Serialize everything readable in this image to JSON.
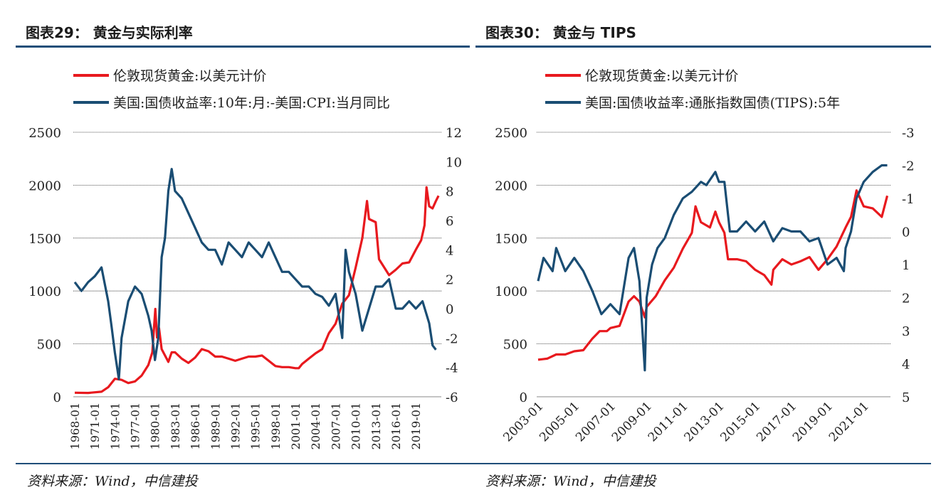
{
  "panels": [
    {
      "title": "图表29：  黄金与实际利率",
      "source": "资料来源：Wind，中信建投"
    },
    {
      "title": "图表30：  黄金与 TIPS",
      "source": "资料来源：Wind，中信建投"
    }
  ],
  "colors": {
    "gold": "#e8191e",
    "rate": "#1a4d73",
    "rule": "#1f4e79"
  },
  "chart_data": [
    {
      "type": "line",
      "title": "",
      "legend": "top-left",
      "grid": true,
      "x_ticks": [
        "1968-01",
        "1971-01",
        "1974-01",
        "1977-01",
        "1980-01",
        "1983-01",
        "1986-01",
        "1989-01",
        "1992-01",
        "1995-01",
        "1998-01",
        "2001-01",
        "2004-01",
        "2007-01",
        "2010-01",
        "2013-01",
        "2016-01",
        "2019-01"
      ],
      "xlim": [
        1968.0,
        2022.6
      ],
      "y_left": {
        "ticks": [
          "0",
          "500",
          "1000",
          "1500",
          "2000",
          "2500"
        ],
        "lim": [
          0,
          2500
        ]
      },
      "y_right": {
        "ticks": [
          "-6",
          "-4",
          "-2",
          "0",
          "2",
          "4",
          "6",
          "8",
          "10",
          "12"
        ],
        "lim": [
          -6,
          12
        ]
      },
      "series": [
        {
          "name": "伦敦现货黄金:以美元计价",
          "axis": "left",
          "x": [
            1968,
            1970,
            1972,
            1973,
            1974,
            1975,
            1976,
            1977,
            1978,
            1979,
            1979.6,
            1980.05,
            1980.3,
            1980.6,
            1981,
            1982,
            1982.5,
            1983,
            1984,
            1985,
            1986,
            1987,
            1988,
            1989,
            1990,
            1991,
            1992,
            1993,
            1994,
            1995,
            1996,
            1997,
            1998,
            1999,
            2000,
            2001,
            2001.5,
            2002,
            2003,
            2004,
            2005,
            2006,
            2007,
            2008,
            2009,
            2010,
            2011,
            2011.7,
            2012,
            2013,
            2013.5,
            2014,
            2015,
            2016,
            2017,
            2018,
            2019,
            2019.8,
            2020.3,
            2020.6,
            2021,
            2021.5,
            2022,
            2022.4
          ],
          "y": [
            38,
            36,
            48,
            90,
            170,
            160,
            130,
            145,
            200,
            300,
            420,
            830,
            560,
            650,
            450,
            330,
            420,
            420,
            360,
            320,
            370,
            450,
            430,
            380,
            380,
            360,
            340,
            360,
            380,
            380,
            390,
            340,
            290,
            280,
            280,
            270,
            270,
            310,
            360,
            410,
            450,
            600,
            690,
            880,
            960,
            1220,
            1500,
            1850,
            1680,
            1650,
            1300,
            1250,
            1150,
            1200,
            1260,
            1270,
            1390,
            1480,
            1620,
            1980,
            1800,
            1780,
            1850,
            1900
          ]
        },
        {
          "name": "美国:国债收益率:10年:月:-美国:CPI:当月同比",
          "axis": "right",
          "x": [
            1968,
            1969,
            1970,
            1971,
            1972,
            1973,
            1973.5,
            1974,
            1974.6,
            1975,
            1976,
            1977,
            1978,
            1979,
            1979.5,
            1980,
            1980.5,
            1981,
            1981.5,
            1982,
            1982.5,
            1983,
            1984,
            1985,
            1986,
            1987,
            1988,
            1989,
            1990,
            1991,
            1992,
            1993,
            1994,
            1995,
            1996,
            1997,
            1998,
            1999,
            2000,
            2001,
            2002,
            2003,
            2004,
            2005,
            2006,
            2007,
            2008,
            2008.5,
            2009,
            2010,
            2011,
            2012,
            2013,
            2014,
            2015,
            2016,
            2017,
            2018,
            2019,
            2020,
            2021,
            2021.5,
            2022
          ],
          "y": [
            1.8,
            1.2,
            1.8,
            2.2,
            2.8,
            0.5,
            -1.2,
            -3.0,
            -4.8,
            -2.0,
            0.5,
            1.5,
            1.0,
            -0.5,
            -1.5,
            -3.5,
            -2.0,
            3.5,
            4.8,
            8.0,
            9.5,
            8.0,
            7.5,
            6.5,
            5.5,
            4.5,
            4.0,
            4.0,
            3.0,
            4.5,
            4.0,
            3.5,
            4.5,
            4.0,
            3.5,
            4.5,
            3.5,
            2.5,
            2.5,
            2.0,
            1.5,
            1.5,
            1.0,
            0.8,
            0.2,
            1.0,
            -2.0,
            4.0,
            2.5,
            1.0,
            -1.5,
            0.0,
            1.5,
            1.5,
            2.0,
            0.0,
            0.0,
            0.5,
            0.0,
            0.5,
            -1.0,
            -2.5,
            -2.8
          ]
        }
      ]
    },
    {
      "type": "line",
      "title": "",
      "legend": "top-left",
      "grid": true,
      "x_ticks": [
        "2003-01",
        "2005-01",
        "2007-01",
        "2009-01",
        "2011-01",
        "2013-01",
        "2015-01",
        "2017-01",
        "2019-01",
        "2021-01"
      ],
      "xlim": [
        2003.0,
        2022.4
      ],
      "y_left": {
        "ticks": [
          "0",
          "500",
          "1000",
          "1500",
          "2000",
          "2500"
        ],
        "lim": [
          0,
          2500
        ]
      },
      "y_right": {
        "ticks": [
          "5",
          "4",
          "3",
          "2",
          "1",
          "0",
          "-1",
          "-2",
          "-3"
        ],
        "lim": [
          5,
          -3
        ],
        "inverted": true
      },
      "series": [
        {
          "name": "伦敦现货黄金:以美元计价",
          "axis": "left",
          "x": [
            2003,
            2003.5,
            2004,
            2004.5,
            2005,
            2005.5,
            2006,
            2006.4,
            2006.8,
            2007,
            2007.5,
            2008,
            2008.3,
            2008.6,
            2008.9,
            2009,
            2009.5,
            2010,
            2010.5,
            2011,
            2011.5,
            2011.7,
            2012,
            2012.5,
            2012.8,
            2013,
            2013.3,
            2013.5,
            2014,
            2014.5,
            2015,
            2015.5,
            2015.9,
            2016,
            2016.5,
            2017,
            2017.5,
            2018,
            2018.5,
            2019,
            2019.5,
            2020,
            2020.3,
            2020.6,
            2021,
            2021.5,
            2022,
            2022.3
          ],
          "y": [
            350,
            360,
            400,
            400,
            430,
            440,
            550,
            620,
            620,
            650,
            670,
            900,
            950,
            900,
            750,
            850,
            950,
            1100,
            1220,
            1400,
            1550,
            1800,
            1650,
            1600,
            1750,
            1650,
            1550,
            1300,
            1300,
            1280,
            1200,
            1150,
            1060,
            1200,
            1300,
            1250,
            1280,
            1320,
            1200,
            1300,
            1420,
            1600,
            1700,
            1950,
            1800,
            1780,
            1700,
            1900
          ]
        },
        {
          "name": "美国:国债收益率:通胀指数国债(TIPS):5年",
          "axis": "right",
          "x": [
            2003,
            2003.3,
            2003.8,
            2004,
            2004.5,
            2005,
            2005.5,
            2006,
            2006.5,
            2007,
            2007.5,
            2008,
            2008.3,
            2008.6,
            2008.9,
            2009,
            2009.3,
            2009.6,
            2010,
            2010.5,
            2011,
            2011.5,
            2012,
            2012.3,
            2012.8,
            2013,
            2013.3,
            2013.6,
            2014,
            2014.5,
            2015,
            2015.5,
            2016,
            2016.5,
            2017,
            2017.5,
            2018,
            2018.5,
            2019,
            2019.5,
            2019.9,
            2020,
            2020.3,
            2020.6,
            2021,
            2021.5,
            2022,
            2022.3
          ],
          "y": [
            1.5,
            0.8,
            1.2,
            0.5,
            1.2,
            0.8,
            1.2,
            1.8,
            2.5,
            2.2,
            2.5,
            0.8,
            0.5,
            1.5,
            4.2,
            2.0,
            1.0,
            0.5,
            0.2,
            -0.5,
            -1.0,
            -1.2,
            -1.5,
            -1.4,
            -1.8,
            -1.5,
            -1.5,
            0.0,
            0.0,
            -0.3,
            0.0,
            -0.3,
            0.3,
            -0.1,
            0.0,
            0.0,
            0.3,
            0.2,
            1.0,
            0.8,
            1.2,
            0.5,
            0.0,
            -1.0,
            -1.5,
            -1.8,
            -2.0,
            -2.0
          ]
        }
      ]
    }
  ]
}
